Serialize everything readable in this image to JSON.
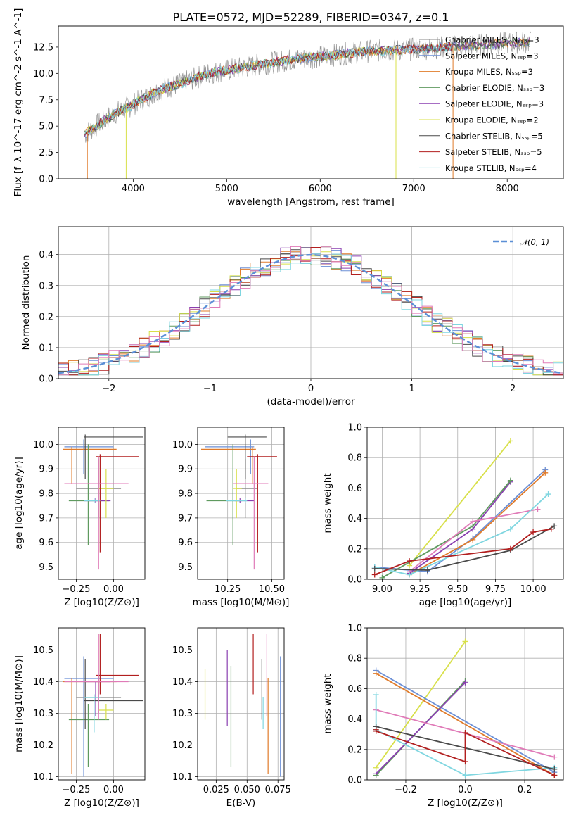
{
  "series_colors": {
    "Chabrier MILES": "#8a8a8a",
    "Salpeter MILES": "#6b8fd6",
    "Kroupa MILES": "#e07b2a",
    "Chabrier ELODIE": "#5f9a5f",
    "Salpeter ELODIE": "#8a3fb0",
    "Kroupa ELODIE": "#d8e04a",
    "Chabrier STELIB": "#4a4a4a",
    "Salpeter STELIB": "#b21f1f",
    "Kroupa STELIB": "#7fd6e0",
    "pink": "#e07bb8",
    "gaussian": "#5b8fd6"
  },
  "chart_data": [
    {
      "id": "spectrum",
      "type": "line",
      "title": "PLATE=0572, MJD=52289, FIBERID=0347, z=0.1",
      "xlabel": "wavelength [Angstrom, rest frame]",
      "ylabel": "Flux [f_λ 10^-17 erg cm^-2 s^-1 A^-1]",
      "xlim": [
        3200,
        8600
      ],
      "ylim": [
        0,
        14.5
      ],
      "xticks": [
        "4000",
        "5000",
        "6000",
        "7000",
        "8000"
      ],
      "yticks": [
        "0.0",
        "2.5",
        "5.0",
        "7.5",
        "10.0",
        "12.5"
      ],
      "legend_position": "right",
      "legend": [
        {
          "name": "Chabrier MILES, N_SSP=3"
        },
        {
          "name": "Salpeter MILES, N_SSP=3"
        },
        {
          "name": "Kroupa MILES, N_SSP=3"
        },
        {
          "name": "Chabrier ELODIE, N_SSP=3"
        },
        {
          "name": "Salpeter ELODIE, N_SSP=3"
        },
        {
          "name": "Kroupa ELODIE, N_SSP=2"
        },
        {
          "name": "Chabrier STELIB, N_SSP=5"
        },
        {
          "name": "Salpeter STELIB, N_SSP=5"
        },
        {
          "name": "Kroupa STELIB, N_SSP=4"
        }
      ],
      "continuum": [
        [
          3480,
          4.2
        ],
        [
          3600,
          5.0
        ],
        [
          3800,
          6.2
        ],
        [
          3950,
          6.8
        ],
        [
          4100,
          7.6
        ],
        [
          4300,
          8.5
        ],
        [
          4500,
          9.0
        ],
        [
          4800,
          10.0
        ],
        [
          5200,
          10.6
        ],
        [
          5600,
          11.2
        ],
        [
          6000,
          11.6
        ],
        [
          6500,
          12.1
        ],
        [
          7000,
          12.3
        ],
        [
          7500,
          12.6
        ],
        [
          8000,
          12.9
        ],
        [
          8250,
          13.0
        ]
      ],
      "grid": false
    },
    {
      "id": "histogram",
      "type": "bar",
      "xlabel": "(data-model)/error",
      "ylabel": "Normed distribution",
      "xlim": [
        -2.5,
        2.5
      ],
      "ylim": [
        0,
        0.49
      ],
      "xticks": [
        "−2",
        "−1",
        "0",
        "1",
        "2"
      ],
      "yticks": [
        "0.0",
        "0.1",
        "0.2",
        "0.3",
        "0.4"
      ],
      "legend": [
        {
          "name": "N(0,1)"
        }
      ],
      "legend_position": "top-right",
      "grid": true,
      "gaussian": {
        "mean": 0,
        "sigma": 1
      }
    },
    {
      "id": "age_vs_Z",
      "type": "scatter",
      "xlabel": "Z [log10(Z/Z⊙)]",
      "ylabel": "age [log10(age/yr)]",
      "xlim": [
        -0.37,
        0.21
      ],
      "ylim": [
        9.45,
        10.07
      ],
      "xticks": [
        "−0.25",
        "0.00"
      ],
      "yticks": [
        "9.5",
        "9.6",
        "9.7",
        "9.8",
        "9.9",
        "10.0"
      ],
      "grid": true,
      "points": [
        {
          "s": "Chabrier MILES",
          "x": -0.1,
          "y": 9.82,
          "xe": [
            -0.25,
            0.05
          ],
          "ye": [
            9.7,
            9.94
          ]
        },
        {
          "s": "Salpeter MILES",
          "x": -0.2,
          "y": 9.99,
          "xe": [
            -0.33,
            0.0
          ],
          "ye": [
            9.88,
            10.02
          ]
        },
        {
          "s": "Kroupa MILES",
          "x": -0.28,
          "y": 9.98,
          "xe": [
            -0.34,
            0.02
          ],
          "ye": [
            9.84,
            9.99
          ]
        },
        {
          "s": "Chabrier ELODIE",
          "x": -0.17,
          "y": 9.77,
          "xe": [
            -0.3,
            -0.03
          ],
          "ye": [
            9.59,
            10.0
          ]
        },
        {
          "s": "Salpeter ELODIE",
          "x": -0.12,
          "y": 9.77,
          "xe": [
            -0.2,
            -0.02
          ],
          "ye": [
            9.76,
            9.78
          ]
        },
        {
          "s": "Kroupa ELODIE",
          "x": -0.05,
          "y": 9.82,
          "xe": [
            -0.1,
            0.0
          ],
          "ye": [
            9.7,
            9.9
          ]
        },
        {
          "s": "Chabrier STELIB",
          "x": -0.19,
          "y": 10.03,
          "xe": [
            -0.2,
            0.2
          ],
          "ye": [
            9.86,
            10.04
          ]
        },
        {
          "s": "Salpeter STELIB",
          "x": -0.09,
          "y": 9.95,
          "xe": [
            -0.12,
            0.17
          ],
          "ye": [
            9.56,
            9.96
          ]
        },
        {
          "s": "Kroupa STELIB",
          "x": -0.13,
          "y": 9.77,
          "xe": [
            -0.2,
            -0.09
          ],
          "ye": [
            9.76,
            9.78
          ]
        },
        {
          "s": "pink",
          "x": -0.1,
          "y": 9.84,
          "xe": [
            -0.33,
            0.1
          ],
          "ye": [
            9.49,
            9.95
          ]
        }
      ]
    },
    {
      "id": "age_vs_mass",
      "type": "scatter",
      "xlabel": "mass [log10(M/M⊙)]",
      "ylabel": "",
      "xlim": [
        10.08,
        10.57
      ],
      "ylim": [
        9.45,
        10.07
      ],
      "xticks": [
        "10.25",
        "10.50"
      ],
      "yticks": [
        "9.5",
        "9.6",
        "9.7",
        "9.8",
        "9.9",
        "10.0"
      ],
      "grid": true,
      "points": [
        {
          "s": "Chabrier MILES",
          "x": 10.35,
          "y": 9.82,
          "xe": [
            10.3,
            10.42
          ],
          "ye": [
            9.7,
            9.94
          ]
        },
        {
          "s": "Salpeter MILES",
          "x": 10.38,
          "y": 9.99,
          "xe": [
            10.12,
            10.4
          ],
          "ye": [
            9.88,
            10.02
          ]
        },
        {
          "s": "Kroupa MILES",
          "x": 10.39,
          "y": 9.98,
          "xe": [
            10.1,
            10.41
          ],
          "ye": [
            9.84,
            9.99
          ]
        },
        {
          "s": "Chabrier ELODIE",
          "x": 10.28,
          "y": 9.77,
          "xe": [
            10.13,
            10.33
          ],
          "ye": [
            9.59,
            10.0
          ]
        },
        {
          "s": "Salpeter ELODIE",
          "x": 10.32,
          "y": 9.77,
          "xe": [
            10.29,
            10.4
          ],
          "ye": [
            9.76,
            9.78
          ]
        },
        {
          "s": "Kroupa ELODIE",
          "x": 10.3,
          "y": 9.82,
          "xe": [
            10.28,
            10.33
          ],
          "ye": [
            9.7,
            9.9
          ]
        },
        {
          "s": "Chabrier STELIB",
          "x": 10.35,
          "y": 10.03,
          "xe": [
            10.25,
            10.47
          ],
          "ye": [
            9.86,
            10.04
          ]
        },
        {
          "s": "Salpeter STELIB",
          "x": 10.42,
          "y": 9.95,
          "xe": [
            10.36,
            10.53
          ],
          "ye": [
            9.56,
            9.96
          ]
        },
        {
          "s": "Kroupa STELIB",
          "x": 10.35,
          "y": 9.77,
          "xe": [
            10.24,
            10.36
          ],
          "ye": [
            9.76,
            9.78
          ]
        },
        {
          "s": "pink",
          "x": 10.4,
          "y": 9.84,
          "xe": [
            10.28,
            10.48
          ],
          "ye": [
            9.49,
            9.95
          ]
        }
      ]
    },
    {
      "id": "massweight_vs_age",
      "type": "line",
      "xlabel": "age [log10(age/yr)]",
      "ylabel": "mass weight",
      "xlim": [
        8.9,
        10.2
      ],
      "ylim": [
        0,
        1.0
      ],
      "xticks": [
        "9.00",
        "9.25",
        "9.50",
        "9.75",
        "10.00"
      ],
      "yticks": [
        "0.0",
        "0.2",
        "0.4",
        "0.6",
        "0.8",
        "1.0"
      ],
      "grid": true,
      "series": [
        {
          "s": "Kroupa ELODIE",
          "x": [
            9.18,
            9.85
          ],
          "y": [
            0.09,
            0.91
          ]
        },
        {
          "s": "Salpeter MILES",
          "x": [
            8.95,
            9.3,
            9.6,
            10.08
          ],
          "y": [
            0.08,
            0.05,
            0.27,
            0.72
          ]
        },
        {
          "s": "Kroupa MILES",
          "x": [
            9.18,
            9.6,
            10.08
          ],
          "y": [
            0.03,
            0.26,
            0.7
          ]
        },
        {
          "s": "Salpeter ELODIE",
          "x": [
            9.18,
            9.6,
            9.85
          ],
          "y": [
            0.04,
            0.33,
            0.64
          ]
        },
        {
          "s": "Chabrier ELODIE",
          "x": [
            9.0,
            9.6,
            9.85
          ],
          "y": [
            0.01,
            0.35,
            0.65
          ]
        },
        {
          "s": "pink",
          "x": [
            9.18,
            9.6,
            10.03
          ],
          "y": [
            0.05,
            0.38,
            0.46
          ]
        },
        {
          "s": "Kroupa STELIB",
          "x": [
            8.95,
            9.18,
            9.85,
            10.1
          ],
          "y": [
            0.08,
            0.03,
            0.33,
            0.56
          ]
        },
        {
          "s": "Chabrier STELIB",
          "x": [
            8.95,
            9.3,
            9.85,
            10.14
          ],
          "y": [
            0.07,
            0.06,
            0.19,
            0.35
          ]
        },
        {
          "s": "Salpeter STELIB",
          "x": [
            8.95,
            9.18,
            9.85,
            10.0,
            10.12
          ],
          "y": [
            0.03,
            0.12,
            0.2,
            0.31,
            0.33
          ]
        }
      ]
    },
    {
      "id": "mass_vs_Z",
      "type": "scatter",
      "xlabel": "Z [log10(Z/Z⊙)]",
      "ylabel": "mass [log10(M/M⊙)]",
      "xlim": [
        -0.37,
        0.21
      ],
      "ylim": [
        10.09,
        10.57
      ],
      "xticks": [
        "−0.25",
        "0.00"
      ],
      "yticks": [
        "10.1",
        "10.2",
        "10.3",
        "10.4",
        "10.5"
      ],
      "grid": true,
      "points": [
        {
          "s": "Chabrier MILES",
          "x": -0.1,
          "y": 10.35,
          "xe": [
            -0.25,
            0.05
          ],
          "ye": [
            10.3,
            10.42
          ]
        },
        {
          "s": "Salpeter MILES",
          "x": -0.2,
          "y": 10.41,
          "xe": [
            -0.33,
            0.0
          ],
          "ye": [
            10.1,
            10.48
          ]
        },
        {
          "s": "Kroupa MILES",
          "x": -0.28,
          "y": 10.4,
          "xe": [
            -0.34,
            0.02
          ],
          "ye": [
            10.11,
            10.41
          ]
        },
        {
          "s": "Chabrier ELODIE",
          "x": -0.17,
          "y": 10.28,
          "xe": [
            -0.3,
            -0.03
          ],
          "ye": [
            10.13,
            10.33
          ]
        },
        {
          "s": "Salpeter ELODIE",
          "x": -0.12,
          "y": 10.4,
          "xe": [
            -0.2,
            -0.02
          ],
          "ye": [
            10.29,
            10.4
          ]
        },
        {
          "s": "Kroupa ELODIE",
          "x": -0.05,
          "y": 10.31,
          "xe": [
            -0.1,
            0.0
          ],
          "ye": [
            10.28,
            10.33
          ]
        },
        {
          "s": "Chabrier STELIB",
          "x": -0.19,
          "y": 10.34,
          "xe": [
            -0.2,
            0.2
          ],
          "ye": [
            10.25,
            10.47
          ]
        },
        {
          "s": "Salpeter STELIB",
          "x": -0.09,
          "y": 10.42,
          "xe": [
            -0.12,
            0.17
          ],
          "ye": [
            10.36,
            10.55
          ]
        },
        {
          "s": "Kroupa STELIB",
          "x": -0.13,
          "y": 10.35,
          "xe": [
            -0.2,
            -0.09
          ],
          "ye": [
            10.24,
            10.36
          ]
        },
        {
          "s": "pink",
          "x": -0.1,
          "y": 10.4,
          "xe": [
            -0.33,
            0.1
          ],
          "ye": [
            10.28,
            10.55
          ]
        }
      ]
    },
    {
      "id": "mass_vs_ebv",
      "type": "scatter",
      "xlabel": "E(B-V)",
      "ylabel": "",
      "xlim": [
        0.01,
        0.08
      ],
      "ylim": [
        10.09,
        10.57
      ],
      "xticks": [
        "0.025",
        "0.050",
        "0.075"
      ],
      "yticks": [
        "10.1",
        "10.2",
        "10.3",
        "10.4",
        "10.5"
      ],
      "grid": true,
      "points": [
        {
          "s": "Kroupa ELODIE",
          "x": 0.016,
          "ye": [
            10.28,
            10.44
          ]
        },
        {
          "s": "Salpeter ELODIE",
          "x": 0.034,
          "ye": [
            10.26,
            10.5
          ]
        },
        {
          "s": "Chabrier ELODIE",
          "x": 0.037,
          "ye": [
            10.13,
            10.45
          ]
        },
        {
          "s": "Salpeter STELIB",
          "x": 0.055,
          "ye": [
            10.36,
            10.55
          ]
        },
        {
          "s": "Chabrier STELIB",
          "x": 0.062,
          "ye": [
            10.28,
            10.47
          ]
        },
        {
          "s": "Kroupa STELIB",
          "x": 0.063,
          "ye": [
            10.25,
            10.35
          ]
        },
        {
          "s": "pink",
          "x": 0.066,
          "ye": [
            10.29,
            10.55
          ]
        },
        {
          "s": "Kroupa MILES",
          "x": 0.067,
          "ye": [
            10.11,
            10.41
          ]
        },
        {
          "s": "Salpeter MILES",
          "x": 0.077,
          "ye": [
            10.1,
            10.48
          ]
        }
      ]
    },
    {
      "id": "massweight_vs_Z",
      "type": "line",
      "xlabel": "Z [log10(Z/Z⊙)]",
      "ylabel": "mass weight",
      "xlim": [
        -0.33,
        0.33
      ],
      "ylim": [
        0,
        1.0
      ],
      "xticks": [
        "−0.2",
        "0.0",
        "0.2"
      ],
      "yticks": [
        "0.0",
        "0.2",
        "0.4",
        "0.6",
        "0.8",
        "1.0"
      ],
      "grid": true,
      "series": [
        {
          "s": "Kroupa ELODIE",
          "x": [
            -0.3,
            0.0
          ],
          "y": [
            0.08,
            0.91
          ]
        },
        {
          "s": "Salpeter MILES",
          "x": [
            -0.3,
            0.3
          ],
          "y": [
            0.72,
            0.05
          ]
        },
        {
          "s": "Kroupa MILES",
          "x": [
            -0.3,
            0.3
          ],
          "y": [
            0.7,
            0.03
          ]
        },
        {
          "s": "Chabrier ELODIE",
          "x": [
            -0.3,
            0.0
          ],
          "y": [
            0.03,
            0.65
          ]
        },
        {
          "s": "Salpeter ELODIE",
          "x": [
            -0.3,
            0.0
          ],
          "y": [
            0.04,
            0.64
          ]
        },
        {
          "s": "pink",
          "x": [
            -0.3,
            0.3
          ],
          "y": [
            0.46,
            0.15
          ]
        },
        {
          "s": "Kroupa STELIB",
          "x": [
            -0.3,
            -0.3,
            0.0,
            0.3
          ],
          "y": [
            0.56,
            0.33,
            0.03,
            0.08
          ]
        },
        {
          "s": "Chabrier STELIB",
          "x": [
            -0.3,
            0.3
          ],
          "y": [
            0.35,
            0.07
          ]
        },
        {
          "s": "Salpeter STELIB",
          "x": [
            -0.3,
            -0.3,
            0.0,
            0.0,
            0.3
          ],
          "y": [
            0.33,
            0.32,
            0.12,
            0.31,
            0.03
          ]
        }
      ]
    }
  ]
}
